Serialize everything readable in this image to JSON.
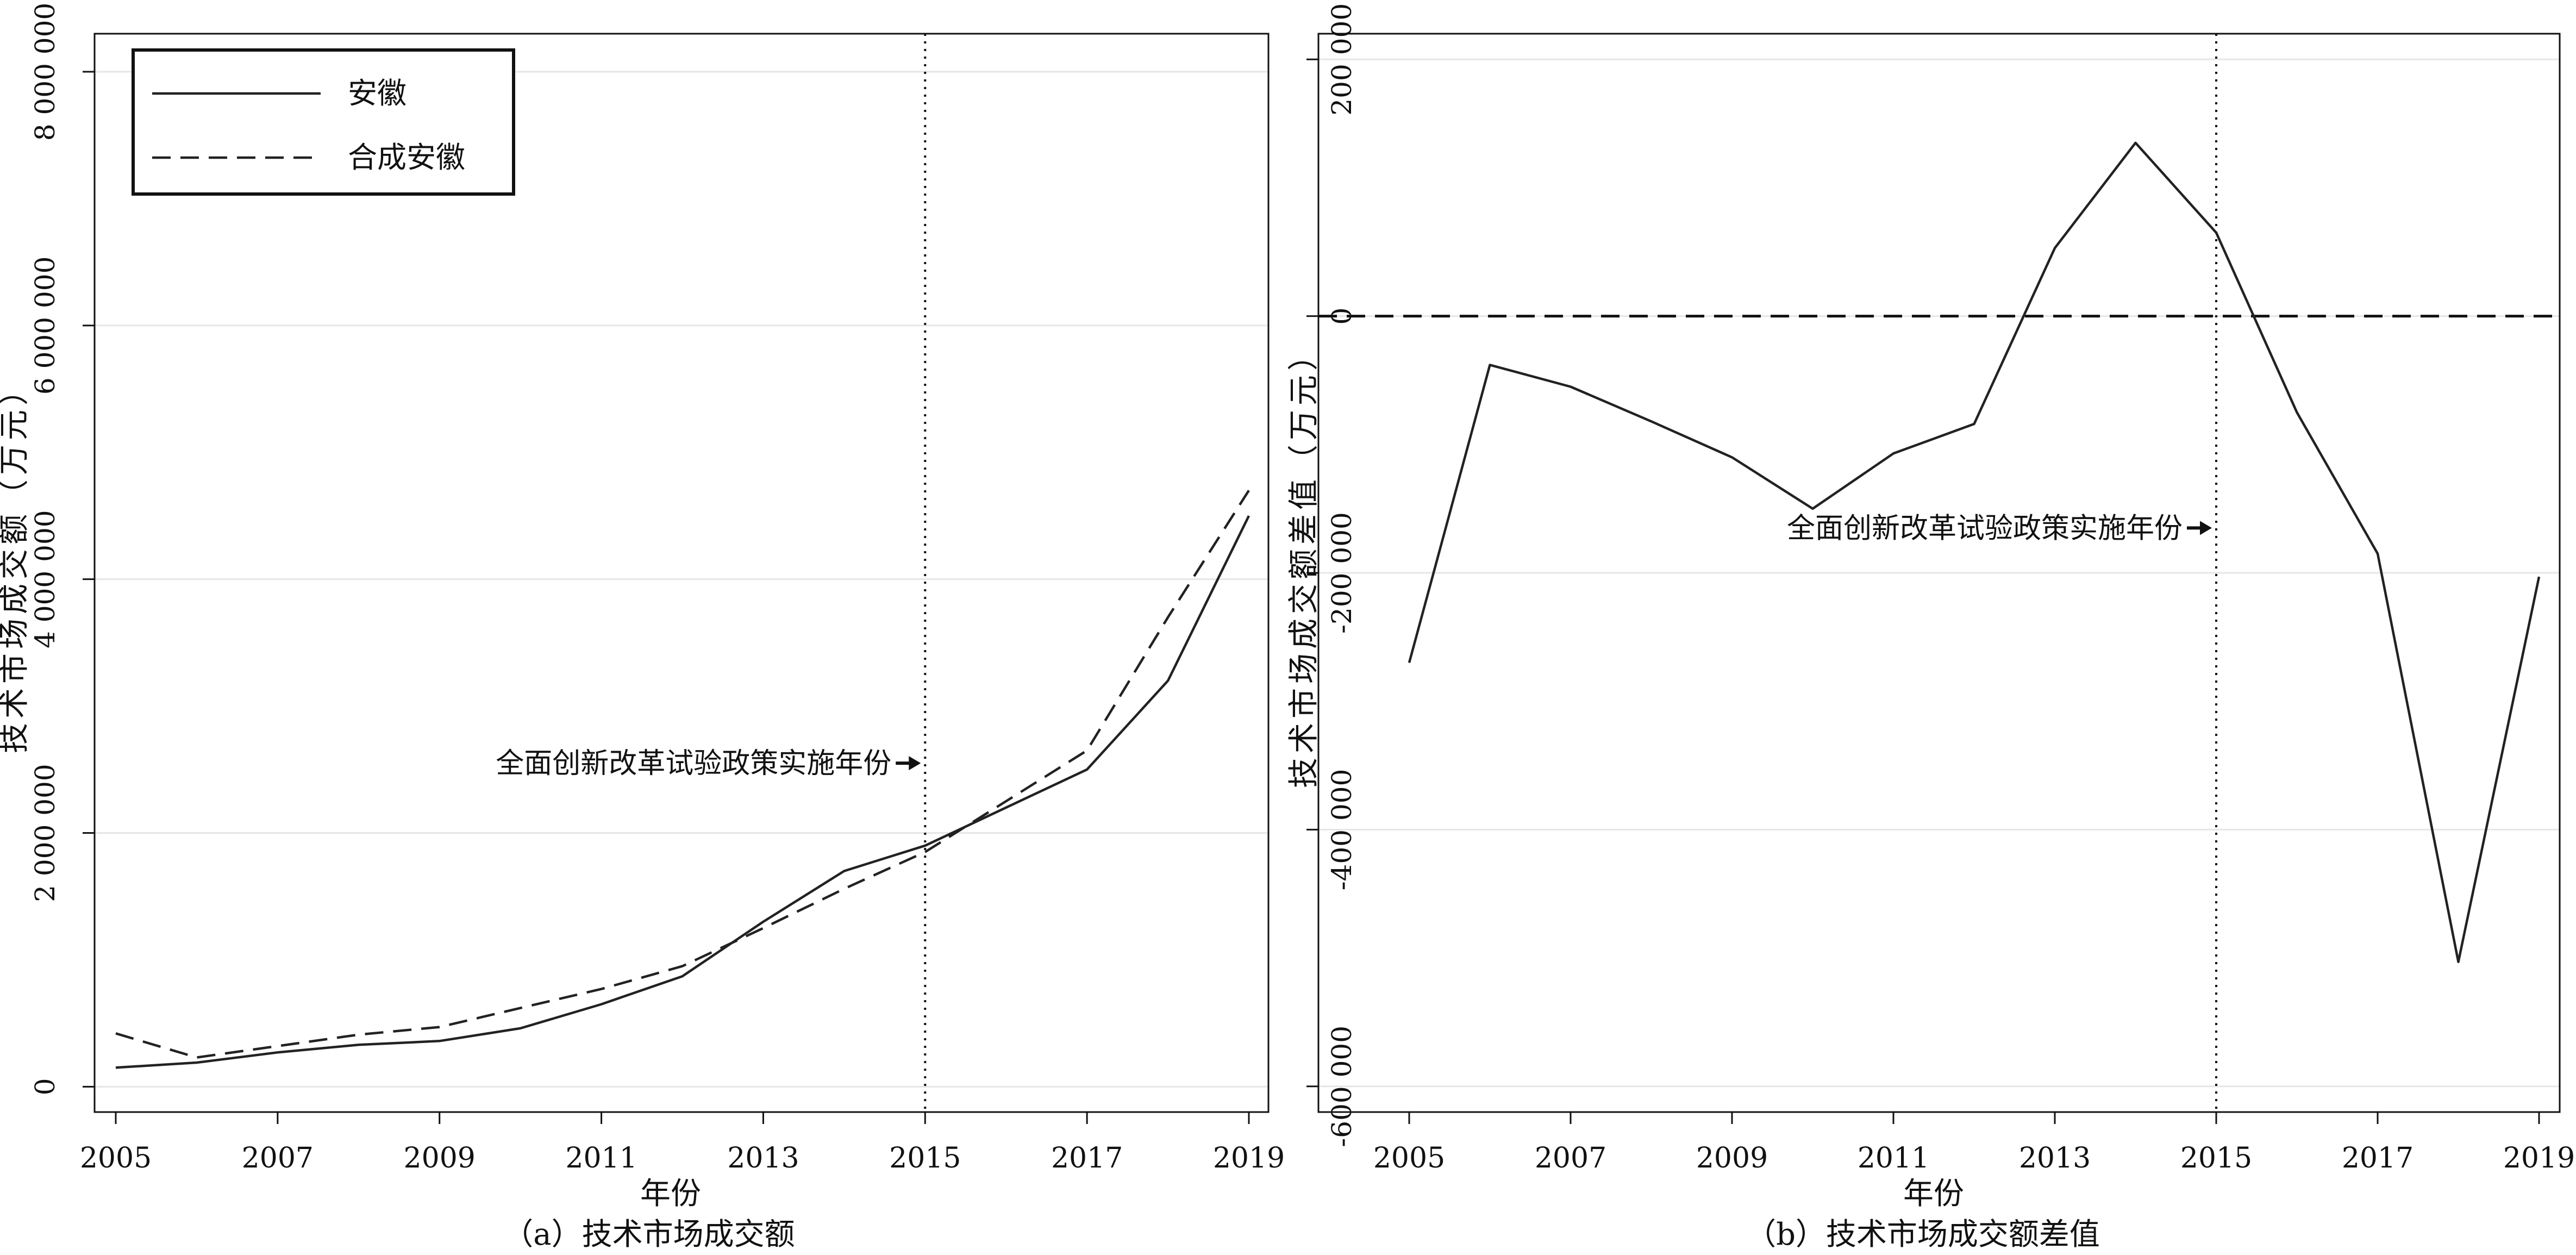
{
  "colors": {
    "line": "#222222",
    "grid": "#e6e6e6",
    "axis": "#111111"
  },
  "chart_data": [
    {
      "type": "line",
      "caption": "（a）技术市场成交额",
      "xlabel": "年份",
      "ylabel": "技术市场成交额（万元）",
      "xlim": [
        2005,
        2019
      ],
      "ylim": [
        -200000,
        8300000
      ],
      "x_ticks": [
        "2005",
        "2007",
        "2009",
        "2011",
        "2013",
        "2015",
        "2017",
        "2019"
      ],
      "y_ticks": [
        {
          "value": 0,
          "label": "0"
        },
        {
          "value": 2000000,
          "label": "2 000 000"
        },
        {
          "value": 4000000,
          "label": "4 000 000"
        },
        {
          "value": 6000000,
          "label": "6 000 000"
        },
        {
          "value": 8000000,
          "label": "8 000 000"
        }
      ],
      "grid": true,
      "legend": "top-left",
      "x": [
        2005,
        2006,
        2007,
        2008,
        2009,
        2010,
        2011,
        2012,
        2013,
        2014,
        2015,
        2016,
        2017,
        2018,
        2019
      ],
      "series": [
        {
          "name": "安徽",
          "style": "solid",
          "values": [
            150000,
            190000,
            270000,
            330000,
            360000,
            460000,
            650000,
            870000,
            1300000,
            1700000,
            1900000,
            2200000,
            2500000,
            3200000,
            4500000
          ]
        },
        {
          "name": "合成安徽",
          "style": "dashed",
          "values": [
            420000,
            230000,
            320000,
            410000,
            470000,
            620000,
            770000,
            950000,
            1250000,
            1560000,
            1850000,
            2250000,
            2650000,
            3700000,
            4700000
          ]
        }
      ],
      "vline": 2015,
      "annotation": {
        "text": "全面创新改革试验政策实施年份",
        "x": 2015,
        "y": 2550000
      }
    },
    {
      "type": "line",
      "caption": "（b）技术市场成交额差值",
      "xlabel": "年份",
      "ylabel": "技术市场成交额差值（万元）",
      "xlim": [
        2005,
        2019
      ],
      "ylim": [
        -620000,
        220000
      ],
      "x_ticks": [
        "2005",
        "2007",
        "2009",
        "2011",
        "2013",
        "2015",
        "2017",
        "2019"
      ],
      "y_ticks": [
        {
          "value": -600000,
          "label": "-600 000"
        },
        {
          "value": -400000,
          "label": "-400 000"
        },
        {
          "value": -200000,
          "label": "-200 000"
        },
        {
          "value": 0,
          "label": "0"
        },
        {
          "value": 200000,
          "label": "200 000"
        }
      ],
      "grid": true,
      "x": [
        2005,
        2006,
        2007,
        2008,
        2009,
        2010,
        2011,
        2012,
        2013,
        2014,
        2015,
        2016,
        2017,
        2018,
        2019
      ],
      "series": [
        {
          "style": "solid",
          "values": [
            -270000,
            -38000,
            -55000,
            -82000,
            -110000,
            -150000,
            -107000,
            -84000,
            53000,
            135000,
            65000,
            -75000,
            -185000,
            -503000,
            -203000
          ]
        }
      ],
      "hline": 0,
      "vline": 2015,
      "annotation": {
        "text": "全面创新改革试验政策实施年份",
        "x": 2015,
        "y": -165000
      }
    }
  ]
}
